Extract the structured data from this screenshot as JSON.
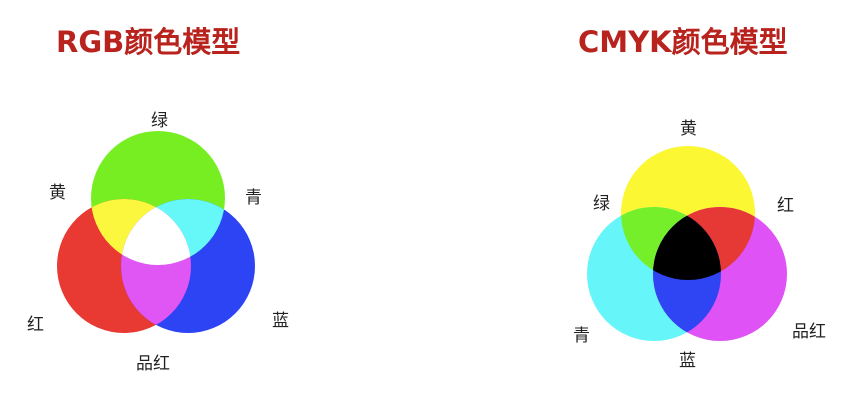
{
  "rgb_model": {
    "title": "RGB颜色模型",
    "mode": "additive",
    "primaries": [
      {
        "label": "绿",
        "color": "#77ee22"
      },
      {
        "label": "红",
        "color": "#e83a33"
      },
      {
        "label": "蓝",
        "color": "#2d44f5"
      }
    ],
    "mixes": [
      {
        "label": "黄",
        "color": "#fbf73f"
      },
      {
        "label": "青",
        "color": "#66f7f8"
      },
      {
        "label": "品红",
        "color": "#df56f4"
      },
      {
        "label": "",
        "color": "#ffffff"
      }
    ]
  },
  "cmyk_model": {
    "title": "CMYK颜色模型",
    "mode": "subtractive",
    "primaries": [
      {
        "label": "黄",
        "color": "#fbf733"
      },
      {
        "label": "青",
        "color": "#66f6fa"
      },
      {
        "label": "品红",
        "color": "#df52f5"
      }
    ],
    "mixes": [
      {
        "label": "绿",
        "color": "#74ef2a"
      },
      {
        "label": "红",
        "color": "#e63835"
      },
      {
        "label": "蓝",
        "color": "#2f45f4"
      },
      {
        "label": "",
        "color": "#000000"
      }
    ]
  }
}
